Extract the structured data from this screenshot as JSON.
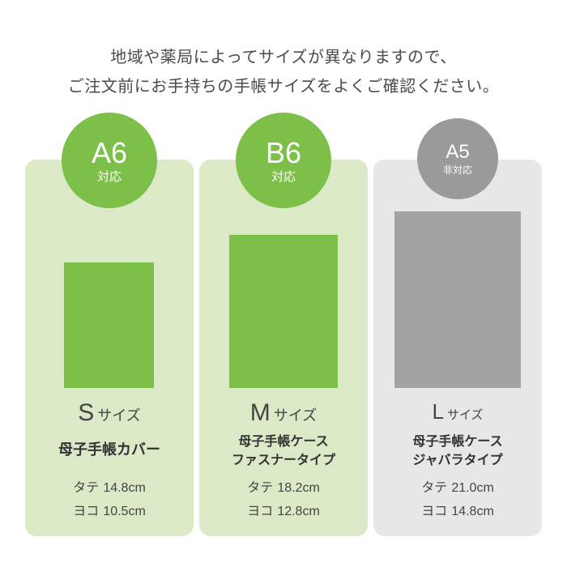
{
  "intro": {
    "line1": "地域や薬局によってサイズが異なりますので、",
    "line2": "ご注文前にお手持ちの手帳サイズをよくご確認ください。"
  },
  "sizes": [
    {
      "badge_size": "A6",
      "badge_status": "対応",
      "size_letter": "S",
      "size_suffix": "サイズ",
      "product_lines": [
        "母子手帳カバー"
      ],
      "height_label": "タテ",
      "height_value": "14.8cm",
      "width_label": "ヨコ",
      "width_value": "10.5cm"
    },
    {
      "badge_size": "B6",
      "badge_status": "対応",
      "size_letter": "M",
      "size_suffix": "サイズ",
      "product_lines": [
        "母子手帳ケース",
        "ファスナータイプ"
      ],
      "height_label": "タテ",
      "height_value": "18.2cm",
      "width_label": "ヨコ",
      "width_value": "12.8cm"
    },
    {
      "badge_size": "A5",
      "badge_status": "非対応",
      "size_letter": "L",
      "size_suffix": "サイズ",
      "product_lines": [
        "母子手帳ケース",
        "ジャバラタイプ"
      ],
      "height_label": "タテ",
      "height_value": "21.0cm",
      "width_label": "ヨコ",
      "width_value": "14.8cm"
    }
  ],
  "colors": {
    "supported_accent": "#7cc04a",
    "supported_card": "#dce9c6",
    "unsupported_accent": "#9a9a9a",
    "unsupported_card": "#e7e7e7"
  }
}
